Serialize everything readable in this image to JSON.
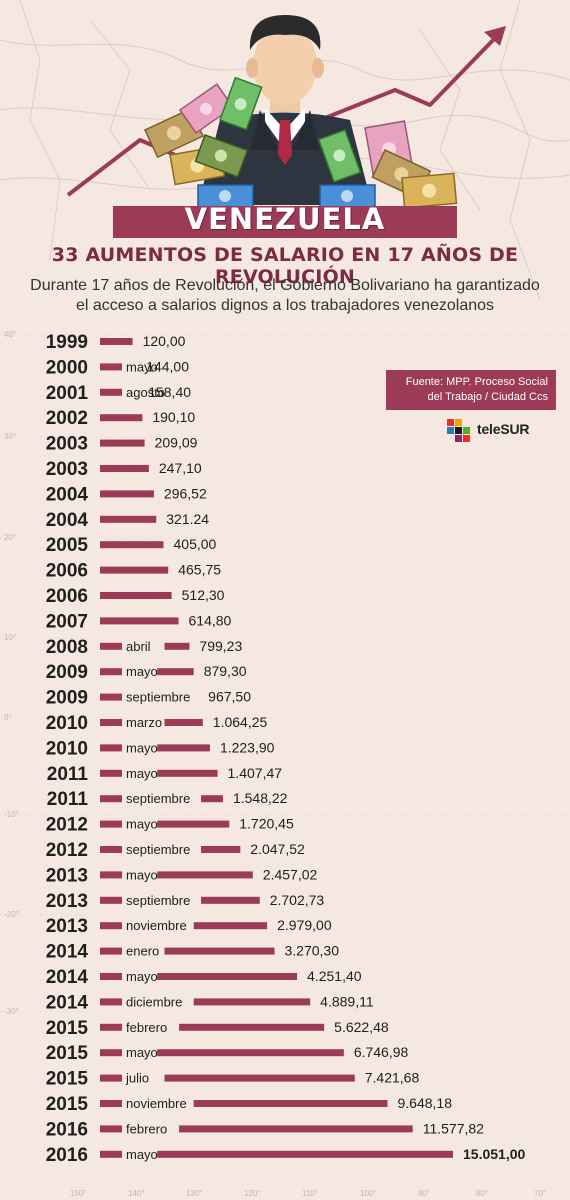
{
  "header": {
    "country": "VENEZUELA",
    "subtitle": "33 AUMENTOS DE SALARIO EN 17 AÑOS DE REVOLUCIÓN",
    "description_line1": "Durante 17 años de Revolución, el Gobierno Bolivariano ha garantizado",
    "description_line2": "el acceso a salarios dignos a los trabajadores venezolanos"
  },
  "source": {
    "line1": "Fuente: MPP. Proceso Social",
    "line2": "del Trabajo / Ciudad Ccs"
  },
  "brand": {
    "name": "teleSUR"
  },
  "map_labels": {
    "bottom": [
      "150°",
      "140°",
      "130°",
      "120°",
      "110°",
      "100°",
      "90°",
      "80°",
      "70°"
    ],
    "side": [
      "40°",
      "30°",
      "20°",
      "10°",
      "0°",
      "-10°",
      "-20°",
      "-30°"
    ]
  },
  "colors": {
    "bar": "#9b3b58",
    "background": "#f4e8e0",
    "year_text": "#1f1f1f"
  },
  "chart_data": {
    "type": "bar",
    "rows": [
      {
        "year": "1999",
        "month": "",
        "label": "120,00",
        "value": 120.0
      },
      {
        "year": "2000",
        "month": "mayo",
        "label": "144,00",
        "value": 144.0
      },
      {
        "year": "2001",
        "month": "agosto",
        "label": "158,40",
        "value": 158.4
      },
      {
        "year": "2002",
        "month": "",
        "label": "190,10",
        "value": 190.1
      },
      {
        "year": "2003",
        "month": "",
        "label": "209,09",
        "value": 209.09
      },
      {
        "year": "2003",
        "month": "",
        "label": "247,10",
        "value": 247.1
      },
      {
        "year": "2004",
        "month": "",
        "label": "296,52",
        "value": 296.52
      },
      {
        "year": "2004",
        "month": "",
        "label": "321.24",
        "value": 321.24
      },
      {
        "year": "2005",
        "month": "",
        "label": "405,00",
        "value": 405.0
      },
      {
        "year": "2006",
        "month": "",
        "label": "465,75",
        "value": 465.75
      },
      {
        "year": "2006",
        "month": "",
        "label": "512,30",
        "value": 512.3
      },
      {
        "year": "2007",
        "month": "",
        "label": "614,80",
        "value": 614.8
      },
      {
        "year": "2008",
        "month": "abril",
        "label": "799,23",
        "value": 799.23
      },
      {
        "year": "2009",
        "month": "mayo",
        "label": "879,30",
        "value": 879.3
      },
      {
        "year": "2009",
        "month": "septiembre",
        "label": "967,50",
        "value": 967.5
      },
      {
        "year": "2010",
        "month": "marzo",
        "label": "1.064,25",
        "value": 1064.25
      },
      {
        "year": "2010",
        "month": "mayo",
        "label": "1.223,90",
        "value": 1223.9
      },
      {
        "year": "2011",
        "month": "mayo",
        "label": "1.407,47",
        "value": 1407.47
      },
      {
        "year": "2011",
        "month": "septiembre",
        "label": "1.548,22",
        "value": 1548.22
      },
      {
        "year": "2012",
        "month": "mayo",
        "label": "1.720,45",
        "value": 1720.45
      },
      {
        "year": "2012",
        "month": "septiembre",
        "label": "2.047,52",
        "value": 2047.52
      },
      {
        "year": "2013",
        "month": "mayo",
        "label": "2.457,02",
        "value": 2457.02
      },
      {
        "year": "2013",
        "month": "septiembre",
        "label": "2.702,73",
        "value": 2702.73
      },
      {
        "year": "2013",
        "month": "noviembre",
        "label": "2.979,00",
        "value": 2979.0
      },
      {
        "year": "2014",
        "month": "enero",
        "label": "3.270,30",
        "value": 3270.3
      },
      {
        "year": "2014",
        "month": "mayo",
        "label": "4.251,40",
        "value": 4251.4
      },
      {
        "year": "2014",
        "month": "diciembre",
        "label": "4.889,11",
        "value": 4889.11
      },
      {
        "year": "2015",
        "month": "febrero",
        "label": "5.622,48",
        "value": 5622.48
      },
      {
        "year": "2015",
        "month": "mayo",
        "label": "6.746,98",
        "value": 6746.98
      },
      {
        "year": "2015",
        "month": "julio",
        "label": "7.421,68",
        "value": 7421.68
      },
      {
        "year": "2015",
        "month": "noviembre",
        "label": "9.648,18",
        "value": 9648.18
      },
      {
        "year": "2016",
        "month": "febrero",
        "label": "11.577,82",
        "value": 11577.82
      },
      {
        "year": "2016",
        "month": "mayo",
        "label": "15.051,00",
        "value": 15051.0
      }
    ]
  }
}
